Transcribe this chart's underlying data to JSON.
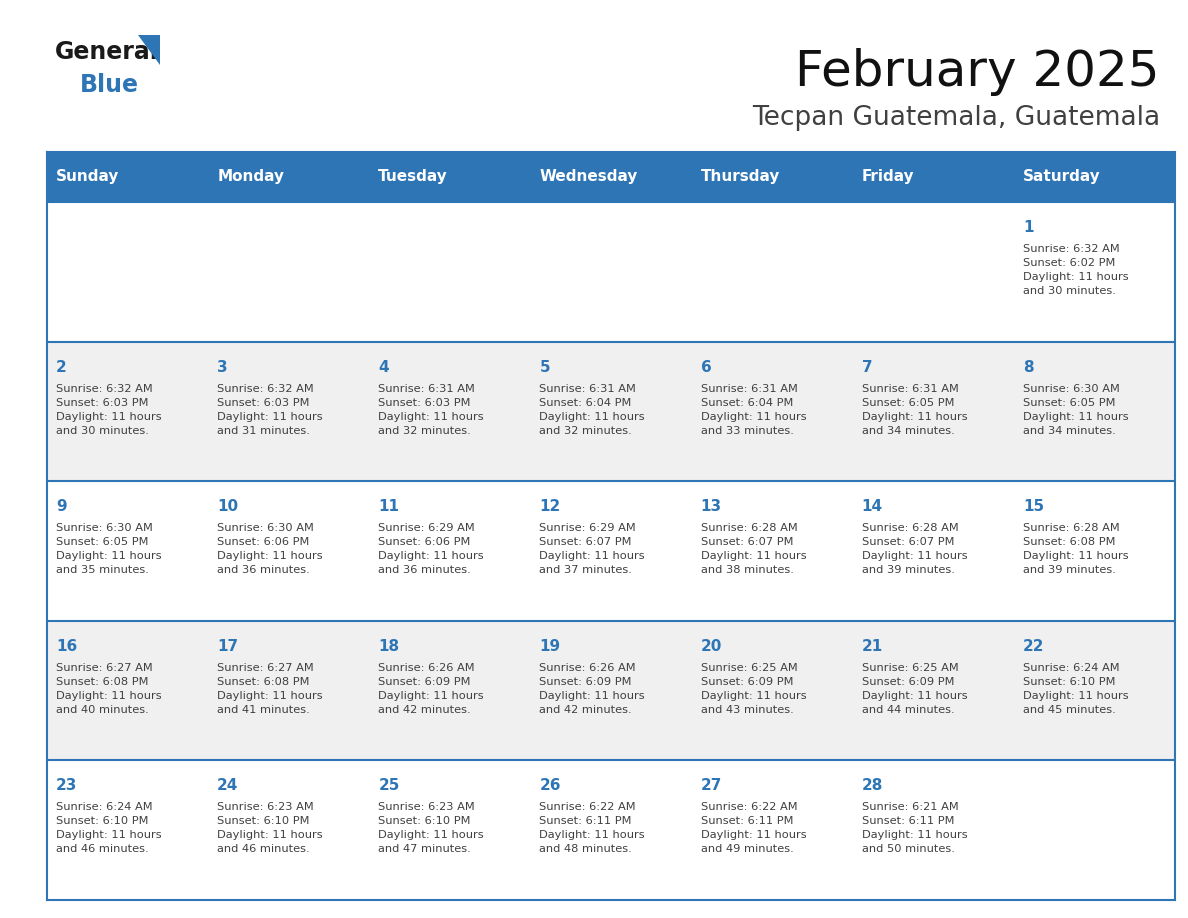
{
  "title": "February 2025",
  "subtitle": "Tecpan Guatemala, Guatemala",
  "header_bg": "#2E75B6",
  "header_text_color": "#FFFFFF",
  "cell_bg_white": "#FFFFFF",
  "cell_bg_light": "#F0F0F0",
  "day_number_color": "#2E75B6",
  "text_color": "#404040",
  "border_color": "#2E75B6",
  "days_of_week": [
    "Sunday",
    "Monday",
    "Tuesday",
    "Wednesday",
    "Thursday",
    "Friday",
    "Saturday"
  ],
  "weeks": [
    [
      {
        "day": null,
        "info": null
      },
      {
        "day": null,
        "info": null
      },
      {
        "day": null,
        "info": null
      },
      {
        "day": null,
        "info": null
      },
      {
        "day": null,
        "info": null
      },
      {
        "day": null,
        "info": null
      },
      {
        "day": "1",
        "info": "Sunrise: 6:32 AM\nSunset: 6:02 PM\nDaylight: 11 hours\nand 30 minutes."
      }
    ],
    [
      {
        "day": "2",
        "info": "Sunrise: 6:32 AM\nSunset: 6:03 PM\nDaylight: 11 hours\nand 30 minutes."
      },
      {
        "day": "3",
        "info": "Sunrise: 6:32 AM\nSunset: 6:03 PM\nDaylight: 11 hours\nand 31 minutes."
      },
      {
        "day": "4",
        "info": "Sunrise: 6:31 AM\nSunset: 6:03 PM\nDaylight: 11 hours\nand 32 minutes."
      },
      {
        "day": "5",
        "info": "Sunrise: 6:31 AM\nSunset: 6:04 PM\nDaylight: 11 hours\nand 32 minutes."
      },
      {
        "day": "6",
        "info": "Sunrise: 6:31 AM\nSunset: 6:04 PM\nDaylight: 11 hours\nand 33 minutes."
      },
      {
        "day": "7",
        "info": "Sunrise: 6:31 AM\nSunset: 6:05 PM\nDaylight: 11 hours\nand 34 minutes."
      },
      {
        "day": "8",
        "info": "Sunrise: 6:30 AM\nSunset: 6:05 PM\nDaylight: 11 hours\nand 34 minutes."
      }
    ],
    [
      {
        "day": "9",
        "info": "Sunrise: 6:30 AM\nSunset: 6:05 PM\nDaylight: 11 hours\nand 35 minutes."
      },
      {
        "day": "10",
        "info": "Sunrise: 6:30 AM\nSunset: 6:06 PM\nDaylight: 11 hours\nand 36 minutes."
      },
      {
        "day": "11",
        "info": "Sunrise: 6:29 AM\nSunset: 6:06 PM\nDaylight: 11 hours\nand 36 minutes."
      },
      {
        "day": "12",
        "info": "Sunrise: 6:29 AM\nSunset: 6:07 PM\nDaylight: 11 hours\nand 37 minutes."
      },
      {
        "day": "13",
        "info": "Sunrise: 6:28 AM\nSunset: 6:07 PM\nDaylight: 11 hours\nand 38 minutes."
      },
      {
        "day": "14",
        "info": "Sunrise: 6:28 AM\nSunset: 6:07 PM\nDaylight: 11 hours\nand 39 minutes."
      },
      {
        "day": "15",
        "info": "Sunrise: 6:28 AM\nSunset: 6:08 PM\nDaylight: 11 hours\nand 39 minutes."
      }
    ],
    [
      {
        "day": "16",
        "info": "Sunrise: 6:27 AM\nSunset: 6:08 PM\nDaylight: 11 hours\nand 40 minutes."
      },
      {
        "day": "17",
        "info": "Sunrise: 6:27 AM\nSunset: 6:08 PM\nDaylight: 11 hours\nand 41 minutes."
      },
      {
        "day": "18",
        "info": "Sunrise: 6:26 AM\nSunset: 6:09 PM\nDaylight: 11 hours\nand 42 minutes."
      },
      {
        "day": "19",
        "info": "Sunrise: 6:26 AM\nSunset: 6:09 PM\nDaylight: 11 hours\nand 42 minutes."
      },
      {
        "day": "20",
        "info": "Sunrise: 6:25 AM\nSunset: 6:09 PM\nDaylight: 11 hours\nand 43 minutes."
      },
      {
        "day": "21",
        "info": "Sunrise: 6:25 AM\nSunset: 6:09 PM\nDaylight: 11 hours\nand 44 minutes."
      },
      {
        "day": "22",
        "info": "Sunrise: 6:24 AM\nSunset: 6:10 PM\nDaylight: 11 hours\nand 45 minutes."
      }
    ],
    [
      {
        "day": "23",
        "info": "Sunrise: 6:24 AM\nSunset: 6:10 PM\nDaylight: 11 hours\nand 46 minutes."
      },
      {
        "day": "24",
        "info": "Sunrise: 6:23 AM\nSunset: 6:10 PM\nDaylight: 11 hours\nand 46 minutes."
      },
      {
        "day": "25",
        "info": "Sunrise: 6:23 AM\nSunset: 6:10 PM\nDaylight: 11 hours\nand 47 minutes."
      },
      {
        "day": "26",
        "info": "Sunrise: 6:22 AM\nSunset: 6:11 PM\nDaylight: 11 hours\nand 48 minutes."
      },
      {
        "day": "27",
        "info": "Sunrise: 6:22 AM\nSunset: 6:11 PM\nDaylight: 11 hours\nand 49 minutes."
      },
      {
        "day": "28",
        "info": "Sunrise: 6:21 AM\nSunset: 6:11 PM\nDaylight: 11 hours\nand 50 minutes."
      },
      {
        "day": null,
        "info": null
      }
    ]
  ],
  "logo_general_color": "#1a1a1a",
  "logo_blue_color": "#2E75B6",
  "logo_triangle_color": "#2E75B6"
}
